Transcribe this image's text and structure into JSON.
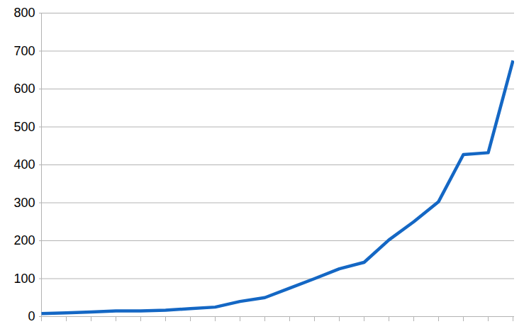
{
  "chart_data": {
    "type": "line",
    "categories": [
      null,
      null,
      null,
      null,
      null,
      null,
      null,
      null,
      null,
      null,
      null,
      null,
      null,
      null,
      null,
      null,
      null,
      null,
      null,
      null
    ],
    "values": [
      8,
      10,
      12,
      15,
      15,
      17,
      21,
      25,
      40,
      50,
      75,
      100,
      126,
      143,
      202,
      250,
      303,
      427,
      432,
      675
    ],
    "color": "#1467c4",
    "ylim": [
      0,
      800
    ],
    "yticks": [
      0,
      100,
      200,
      300,
      400,
      500,
      600,
      700,
      800
    ],
    "grid": true,
    "tick_labels": "y"
  }
}
